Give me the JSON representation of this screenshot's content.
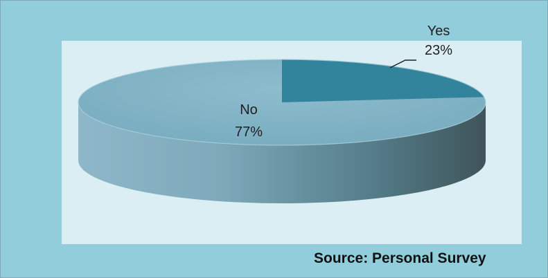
{
  "chart_data": {
    "type": "pie",
    "three_d": true,
    "categories": [
      "Yes",
      "No"
    ],
    "values": [
      23,
      77
    ],
    "value_labels": [
      "23%",
      "77%"
    ],
    "title": "",
    "legend": "none",
    "colors": {
      "Yes": "#31849b",
      "No": "#7fb3c7"
    }
  },
  "source_text": "Source: Personal Survey",
  "colors": {
    "outer_background": "#92cddc",
    "plot_background": "#daeef3",
    "side_dark": "#3f545a",
    "side_light": "#8eb8c9"
  }
}
